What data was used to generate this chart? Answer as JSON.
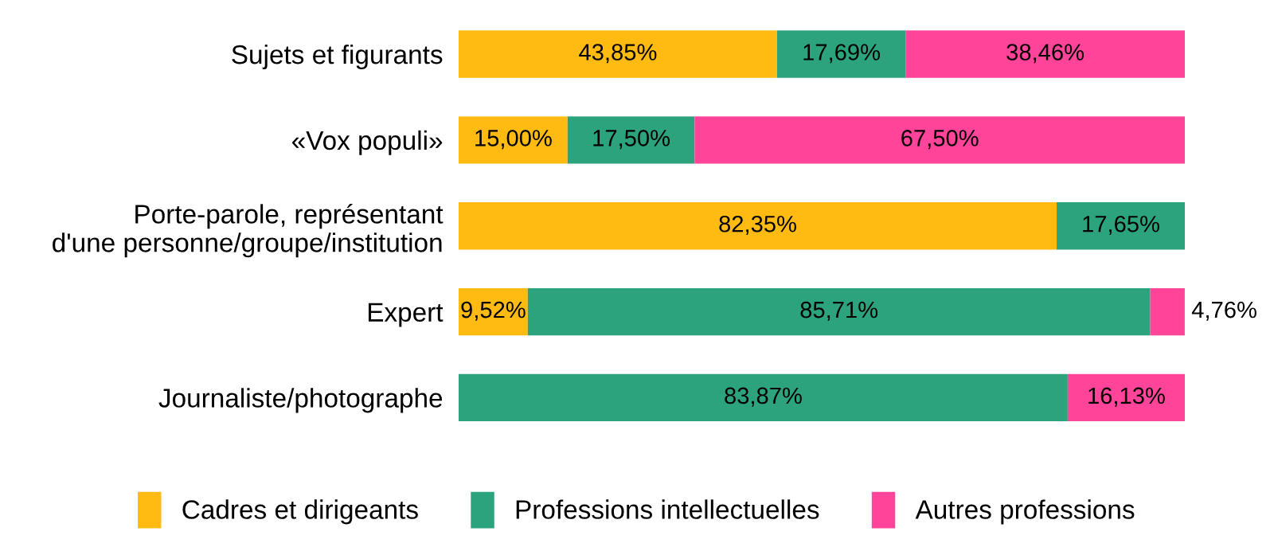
{
  "chart_data": {
    "type": "bar",
    "orientation": "horizontal",
    "stacked": true,
    "legend": "bottom",
    "grid": false,
    "xlim": [
      0,
      100
    ],
    "tick_labels": "y",
    "categories": [
      "Sujets et figurants",
      "«Vox populi»",
      "Porte-parole, représentant\nd'une personne/groupe/institution",
      "Expert",
      "Journaliste/photographe"
    ],
    "series": [
      {
        "name": "Cadres et dirigeants",
        "color": "#ffbb11",
        "values": [
          43.85,
          15.0,
          82.35,
          9.52,
          0
        ],
        "value_labels": [
          "43,85%",
          "15,00%",
          "82,35%",
          "9,52%",
          null
        ]
      },
      {
        "name": "Professions intellectuelles",
        "color": "#2ca37c",
        "values": [
          17.69,
          17.5,
          17.65,
          85.71,
          83.87
        ],
        "value_labels": [
          "17,69%",
          "17,50%",
          "17,65%",
          "85,71%",
          "83,87%"
        ]
      },
      {
        "name": "Autres professions",
        "color": "#ff4499",
        "values": [
          38.46,
          67.5,
          0,
          4.76,
          16.13
        ],
        "value_labels": [
          "38,46%",
          "67,50%",
          null,
          "4,76%",
          "16,13%"
        ]
      }
    ]
  }
}
